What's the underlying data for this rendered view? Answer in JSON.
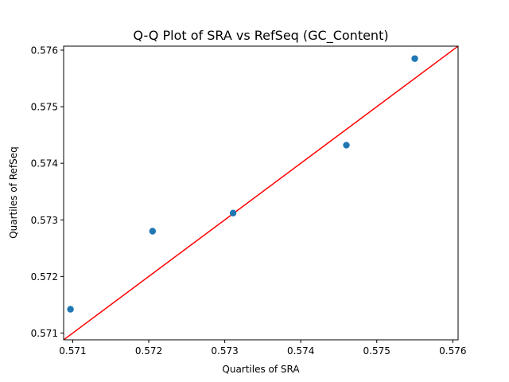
{
  "chart_data": {
    "type": "scatter",
    "title": "Q-Q Plot of SRA vs RefSeq (GC_Content)",
    "xlabel": "Quartiles of SRA",
    "ylabel": "Quartiles of RefSeq",
    "xlim": [
      0.57088,
      0.57607
    ],
    "ylim": [
      0.57088,
      0.57607
    ],
    "x_ticks": [
      "0.571",
      "0.572",
      "0.573",
      "0.574",
      "0.575",
      "0.576"
    ],
    "y_ticks": [
      "0.571",
      "0.572",
      "0.573",
      "0.574",
      "0.575",
      "0.576"
    ],
    "grid": false,
    "series": [
      {
        "x": [
          0.57097,
          0.57205,
          0.57311,
          0.5746,
          0.5755
        ],
        "y": [
          0.57142,
          0.5728,
          0.57312,
          0.57432,
          0.57585
        ]
      }
    ],
    "reference_line": {
      "type": "y=x"
    },
    "colors": {
      "points": "#1f77b4",
      "line": "#ff0000",
      "axes": "#000000"
    }
  }
}
